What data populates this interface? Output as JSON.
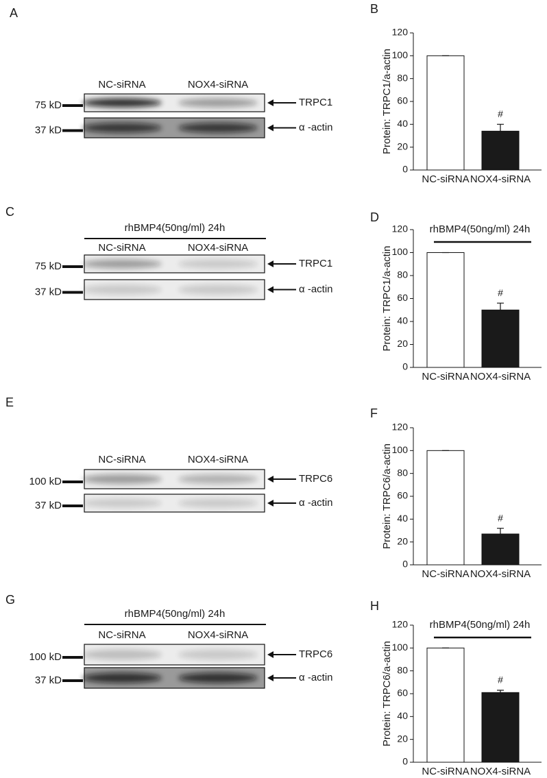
{
  "chart_data": [
    {
      "type": "bar",
      "panel": "B",
      "ylabel": "Protein: TRPC1/a-actin",
      "categories": [
        "NC-siRNA",
        "NOX4-siRNA"
      ],
      "values": [
        100,
        34
      ],
      "errors": [
        0,
        6
      ],
      "colors": [
        "#ffffff",
        "#1a1a1a"
      ],
      "annotation": "#",
      "ylim": [
        0,
        120
      ],
      "yticks": [
        0,
        20,
        40,
        60,
        80,
        100,
        120
      ]
    },
    {
      "type": "bar",
      "panel": "D",
      "subtitle": "rhBMP4(50ng/ml) 24h",
      "ylabel": "Protein: TRPC1/a-actin",
      "categories": [
        "NC-siRNA",
        "NOX4-siRNA"
      ],
      "values": [
        100,
        50
      ],
      "errors": [
        0,
        6
      ],
      "colors": [
        "#ffffff",
        "#1a1a1a"
      ],
      "annotation": "#",
      "ylim": [
        0,
        120
      ],
      "yticks": [
        0,
        20,
        40,
        60,
        80,
        100,
        120
      ]
    },
    {
      "type": "bar",
      "panel": "F",
      "ylabel": "Protein: TRPC6/a-actin",
      "categories": [
        "NC-siRNA",
        "NOX4-siRNA"
      ],
      "values": [
        100,
        27
      ],
      "errors": [
        0,
        5
      ],
      "colors": [
        "#ffffff",
        "#1a1a1a"
      ],
      "annotation": "#",
      "ylim": [
        0,
        120
      ],
      "yticks": [
        0,
        20,
        40,
        60,
        80,
        100,
        120
      ]
    },
    {
      "type": "bar",
      "panel": "H",
      "subtitle": "rhBMP4(50ng/ml) 24h",
      "ylabel": "Protein: TRPC6/a-actin",
      "categories": [
        "NC-siRNA",
        "NOX4-siRNA"
      ],
      "values": [
        100,
        61
      ],
      "errors": [
        0,
        2
      ],
      "colors": [
        "#ffffff",
        "#1a1a1a"
      ],
      "annotation": "#",
      "ylim": [
        0,
        120
      ],
      "yticks": [
        0,
        20,
        40,
        60,
        80,
        100,
        120
      ]
    }
  ],
  "blots": [
    {
      "panel": "A",
      "lanes": [
        "NC-siRNA",
        "NOX4-siRNA"
      ],
      "bands": [
        {
          "marker": "75 kD",
          "target": "TRPC1"
        },
        {
          "marker": "37 kD",
          "target": "α -actin"
        }
      ]
    },
    {
      "panel": "C",
      "header": "rhBMP4(50ng/ml) 24h",
      "lanes": [
        "NC-siRNA",
        "NOX4-siRNA"
      ],
      "bands": [
        {
          "marker": "75 kD",
          "target": "TRPC1"
        },
        {
          "marker": "37 kD",
          "target": "α -actin"
        }
      ]
    },
    {
      "panel": "E",
      "lanes": [
        "NC-siRNA",
        "NOX4-siRNA"
      ],
      "bands": [
        {
          "marker": "100 kD",
          "target": "TRPC6"
        },
        {
          "marker": "37 kD",
          "target": "α -actin"
        }
      ]
    },
    {
      "panel": "G",
      "header": "rhBMP4(50ng/ml) 24h",
      "lanes": [
        "NC-siRNA",
        "NOX4-siRNA"
      ],
      "bands": [
        {
          "marker": "100 kD",
          "target": "TRPC6"
        },
        {
          "marker": "37 kD",
          "target": "α -actin"
        }
      ]
    }
  ]
}
